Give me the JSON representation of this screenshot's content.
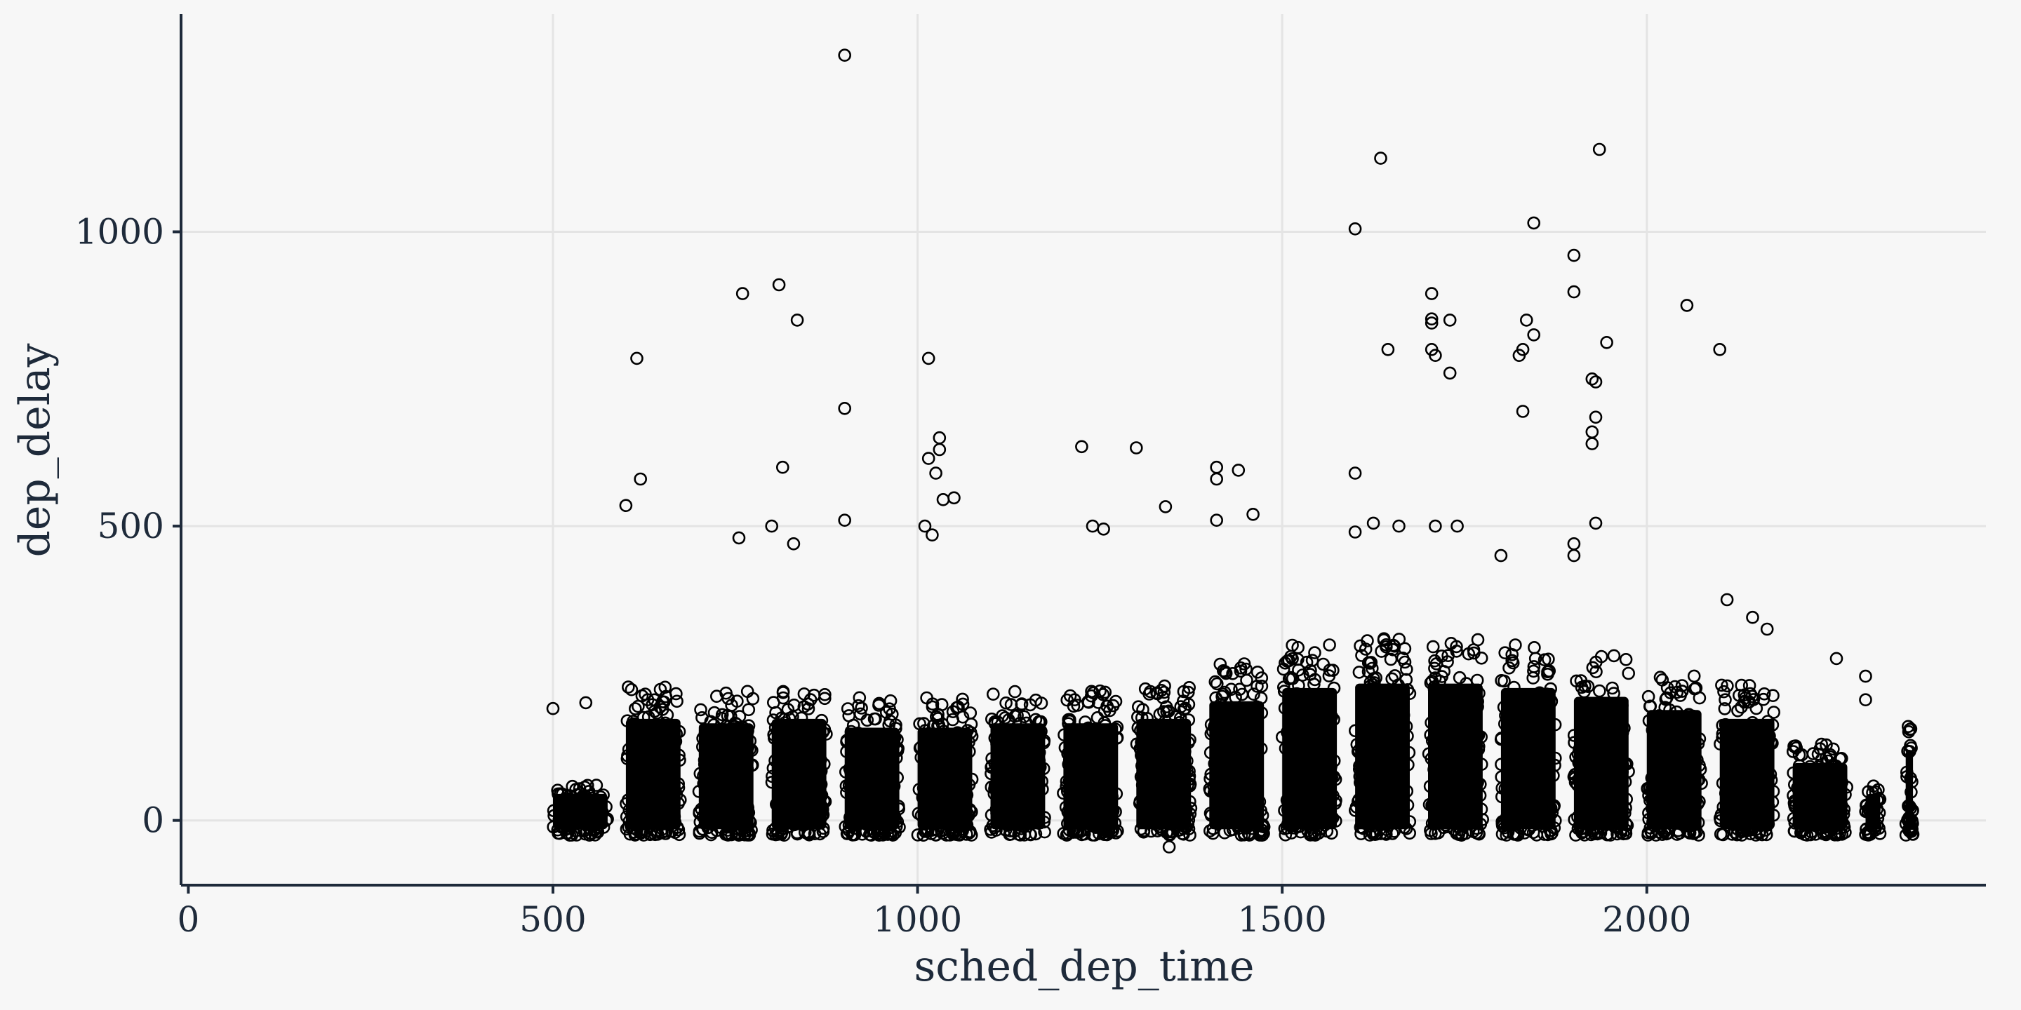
{
  "chart_data": {
    "type": "scatter",
    "title": "",
    "xlabel": "sched_dep_time",
    "ylabel": "dep_delay",
    "xlim": [
      -10,
      2465
    ],
    "ylim": [
      -110,
      1370
    ],
    "x_ticks": [
      0,
      500,
      1000,
      1500,
      2000
    ],
    "y_ticks": [
      0,
      500,
      1000
    ],
    "grid": true,
    "legend": "none",
    "marker": "open-circle",
    "colors": {
      "background": "#f7f7f7",
      "grid": "#e4e4e4",
      "axis": "#1e2a3a",
      "point": "#000000"
    },
    "columns": [
      {
        "x": 500,
        "width": 75,
        "max": 60,
        "fill": 0.6
      },
      {
        "x": 600,
        "width": 75,
        "max": 230,
        "fill": 1.0
      },
      {
        "x": 700,
        "width": 75,
        "max": 220,
        "fill": 1.0
      },
      {
        "x": 800,
        "width": 75,
        "max": 230,
        "fill": 1.0
      },
      {
        "x": 900,
        "width": 75,
        "max": 210,
        "fill": 1.0
      },
      {
        "x": 1000,
        "width": 75,
        "max": 210,
        "fill": 1.0
      },
      {
        "x": 1100,
        "width": 75,
        "max": 220,
        "fill": 1.0
      },
      {
        "x": 1200,
        "width": 75,
        "max": 220,
        "fill": 1.0
      },
      {
        "x": 1300,
        "width": 75,
        "max": 230,
        "fill": 1.0
      },
      {
        "x": 1400,
        "width": 75,
        "max": 270,
        "fill": 1.0
      },
      {
        "x": 1500,
        "width": 75,
        "max": 300,
        "fill": 1.0
      },
      {
        "x": 1600,
        "width": 75,
        "max": 310,
        "fill": 1.0
      },
      {
        "x": 1700,
        "width": 75,
        "max": 310,
        "fill": 1.0
      },
      {
        "x": 1800,
        "width": 75,
        "max": 300,
        "fill": 1.0
      },
      {
        "x": 1900,
        "width": 75,
        "max": 280,
        "fill": 1.0
      },
      {
        "x": 2000,
        "width": 75,
        "max": 250,
        "fill": 1.0
      },
      {
        "x": 2100,
        "width": 75,
        "max": 230,
        "fill": 1.0
      },
      {
        "x": 2200,
        "width": 75,
        "max": 130,
        "fill": 0.8
      },
      {
        "x": 2300,
        "width": 20,
        "max": 60,
        "fill": 0.5
      },
      {
        "x": 2355,
        "width": 10,
        "max": 160,
        "fill": 0.9
      }
    ],
    "points": [
      [
        500,
        190
      ],
      [
        545,
        200
      ],
      [
        615,
        785
      ],
      [
        620,
        580
      ],
      [
        600,
        535
      ],
      [
        760,
        895
      ],
      [
        755,
        480
      ],
      [
        810,
        910
      ],
      [
        835,
        850
      ],
      [
        815,
        600
      ],
      [
        800,
        500
      ],
      [
        830,
        470
      ],
      [
        900,
        1300
      ],
      [
        900,
        700
      ],
      [
        900,
        510
      ],
      [
        1015,
        785
      ],
      [
        1015,
        615
      ],
      [
        1030,
        650
      ],
      [
        1030,
        630
      ],
      [
        1025,
        590
      ],
      [
        1010,
        500
      ],
      [
        1020,
        485
      ],
      [
        1035,
        545
      ],
      [
        1050,
        548
      ],
      [
        1225,
        635
      ],
      [
        1300,
        633
      ],
      [
        1240,
        500
      ],
      [
        1255,
        495
      ],
      [
        1340,
        533
      ],
      [
        1410,
        600
      ],
      [
        1410,
        580
      ],
      [
        1440,
        595
      ],
      [
        1410,
        510
      ],
      [
        1460,
        520
      ],
      [
        1600,
        1005
      ],
      [
        1635,
        1125
      ],
      [
        1645,
        800
      ],
      [
        1600,
        590
      ],
      [
        1600,
        490
      ],
      [
        1625,
        505
      ],
      [
        1660,
        500
      ],
      [
        1705,
        895
      ],
      [
        1705,
        852
      ],
      [
        1705,
        845
      ],
      [
        1705,
        800
      ],
      [
        1710,
        790
      ],
      [
        1730,
        850
      ],
      [
        1730,
        760
      ],
      [
        1710,
        500
      ],
      [
        1740,
        500
      ],
      [
        1845,
        1015
      ],
      [
        1835,
        850
      ],
      [
        1845,
        825
      ],
      [
        1830,
        800
      ],
      [
        1825,
        790
      ],
      [
        1830,
        695
      ],
      [
        1800,
        450
      ],
      [
        1900,
        960
      ],
      [
        1900,
        898
      ],
      [
        1935,
        1140
      ],
      [
        1925,
        750
      ],
      [
        1930,
        745
      ],
      [
        1945,
        812
      ],
      [
        1930,
        685
      ],
      [
        1925,
        660
      ],
      [
        1925,
        640
      ],
      [
        1930,
        505
      ],
      [
        1900,
        470
      ],
      [
        1900,
        450
      ],
      [
        2055,
        875
      ],
      [
        2100,
        800
      ],
      [
        2110,
        375
      ],
      [
        2145,
        345
      ],
      [
        2165,
        325
      ],
      [
        2260,
        275
      ],
      [
        2300,
        245
      ],
      [
        2300,
        205
      ],
      [
        1345,
        -45
      ]
    ]
  }
}
